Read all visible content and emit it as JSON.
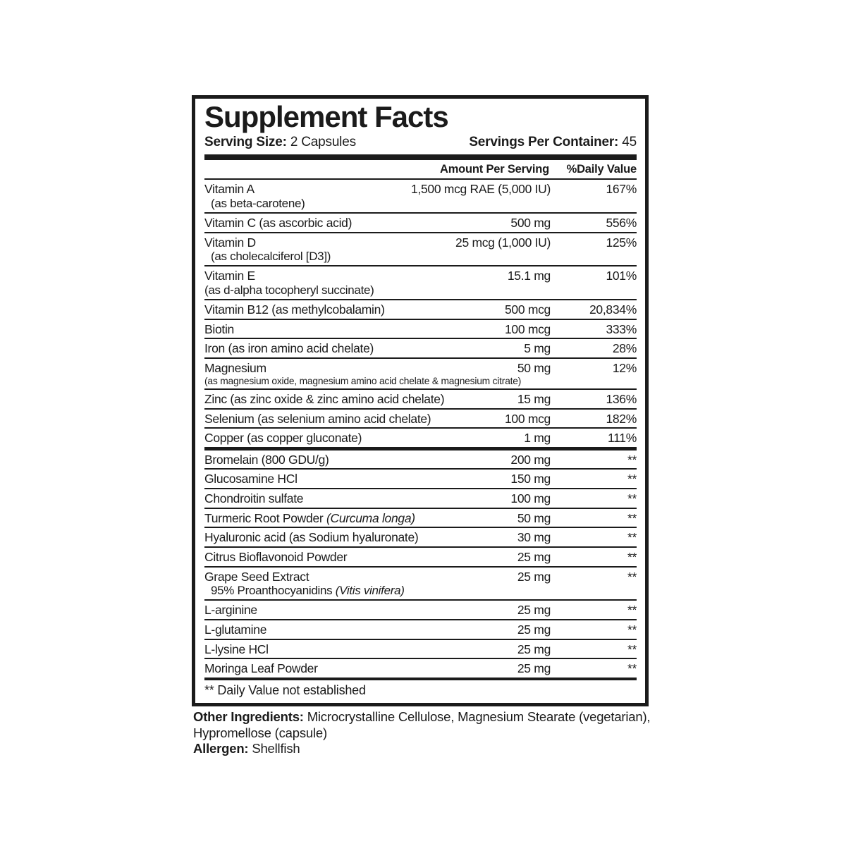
{
  "label": {
    "title": "Supplement Facts",
    "serving_size_label": "Serving Size:",
    "serving_size_value": "2 Capsules",
    "servings_per_container_label": "Servings Per Container:",
    "servings_per_container_value": "45",
    "col_amount": "Amount Per Serving",
    "col_dv": "%Daily Value",
    "rows": [
      {
        "name": "Vitamin A",
        "desc": "(as beta-carotene)",
        "desc_style": "indent",
        "amount": "1,500 mcg RAE (5,000 IU)",
        "dv": "167%"
      },
      {
        "name": "Vitamin C (as ascorbic acid)",
        "amount": "500 mg",
        "dv": "556%"
      },
      {
        "name": "Vitamin D",
        "desc": "(as cholecalciferol [D3])",
        "desc_style": "indent",
        "amount": "25 mcg (1,000 IU)",
        "dv": "125%"
      },
      {
        "name": "Vitamin E",
        "desc": "(as d-alpha tocopheryl succinate)",
        "desc_style": "flush",
        "amount": "15.1 mg",
        "dv": "101%"
      },
      {
        "name": "Vitamin B12 (as methylcobalamin)",
        "amount": "500 mcg",
        "dv": "20,834%"
      },
      {
        "name": "Biotin",
        "amount": "100 mcg",
        "dv": "333%"
      },
      {
        "name": "Iron (as iron amino acid chelate)",
        "amount": "5 mg",
        "dv": "28%"
      },
      {
        "name": "Magnesium",
        "desc": "(as magnesium oxide, magnesium amino acid chelate & magnesium citrate)",
        "desc_style": "flush-small",
        "amount": "50 mg",
        "dv": "12%"
      },
      {
        "name": "Zinc (as zinc oxide & zinc amino acid chelate)",
        "amount": "15 mg",
        "dv": "136%"
      },
      {
        "name": "Selenium (as selenium amino acid chelate)",
        "amount": "100 mcg",
        "dv": "182%"
      },
      {
        "name": "Copper (as copper gluconate)",
        "amount": "1 mg",
        "dv": "111%"
      },
      {
        "name": "Bromelain (800 GDU/g)",
        "amount": "200 mg",
        "dv": "**",
        "thick_top": true
      },
      {
        "name": "Glucosamine HCl",
        "amount": "150 mg",
        "dv": "**"
      },
      {
        "name": "Chondroitin sulfate",
        "amount": "100 mg",
        "dv": "**"
      },
      {
        "name": "Turmeric Root Powder ",
        "name_italic": "(Curcuma longa)",
        "amount": "50 mg",
        "dv": "**"
      },
      {
        "name": "Hyaluronic acid (as Sodium hyaluronate)",
        "amount": "30 mg",
        "dv": "**"
      },
      {
        "name": "Citrus Bioflavonoid Powder",
        "amount": "25 mg",
        "dv": "**"
      },
      {
        "name": "Grape Seed Extract",
        "desc": "95% Proanthocyanidins ",
        "desc_italic": "(Vitis vinifera)",
        "desc_style": "indent",
        "amount": "25 mg",
        "dv": "**"
      },
      {
        "name": "L-arginine",
        "amount": "25 mg",
        "dv": "**"
      },
      {
        "name": "L-glutamine",
        "amount": "25 mg",
        "dv": "**"
      },
      {
        "name": "L-lysine HCl",
        "amount": "25 mg",
        "dv": "**"
      },
      {
        "name": "Moringa Leaf Powder",
        "amount": "25 mg",
        "dv": "**"
      }
    ],
    "footnote": "** Daily Value not established"
  },
  "footer": {
    "other_ingredients_label": "Other Ingredients:",
    "other_ingredients_value": " Microcrystalline Cellulose, Magnesium Stearate (vegetarian), Hypromellose (capsule)",
    "allergen_label": "Allergen:",
    "allergen_value": " Shellfish"
  }
}
